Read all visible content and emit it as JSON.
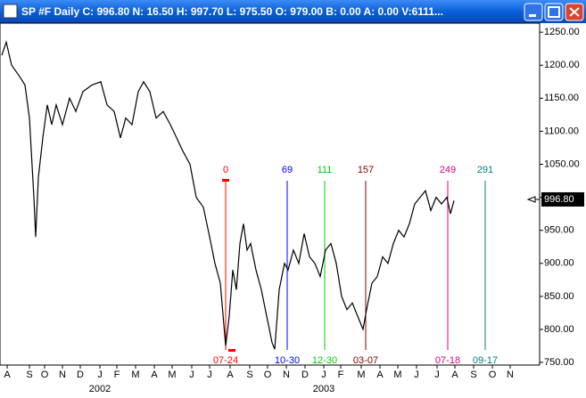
{
  "window": {
    "title": "SP #F Daily C: 996.80 N: 16.50 H: 997.70 L: 975.50 O: 979.00 B: 0.00 A: 0.00 V:6111..."
  },
  "chart_data": {
    "type": "line",
    "x": [
      -251,
      -246,
      -240,
      -232,
      -225,
      -220,
      -215,
      -213,
      -210,
      -205,
      -200,
      -195,
      -190,
      -183,
      -175,
      -168,
      -160,
      -150,
      -140,
      -133,
      -125,
      -118,
      -112,
      -105,
      -98,
      -92,
      -85,
      -78,
      -70,
      -62,
      -55,
      -48,
      -40,
      -33,
      -25,
      -18,
      -12,
      -6,
      0,
      4,
      8,
      12,
      16,
      20,
      24,
      28,
      34,
      40,
      46,
      52,
      55,
      60,
      66,
      70,
      76,
      82,
      88,
      94,
      100,
      106,
      112,
      118,
      124,
      130,
      136,
      142,
      148,
      154,
      158,
      164,
      170,
      176,
      182,
      188,
      194,
      200,
      206,
      212,
      218,
      224,
      230,
      236,
      242,
      248,
      252,
      256
    ],
    "series": [
      {
        "color": "#000000",
        "values": [
          1215,
          1235,
          1200,
          1185,
          1170,
          1120,
          1000,
          940,
          1030,
          1090,
          1140,
          1110,
          1140,
          1110,
          1150,
          1130,
          1160,
          1170,
          1175,
          1140,
          1130,
          1090,
          1120,
          1110,
          1160,
          1175,
          1160,
          1120,
          1130,
          1110,
          1090,
          1070,
          1050,
          1000,
          985,
          940,
          900,
          870,
          775,
          820,
          890,
          860,
          930,
          960,
          920,
          930,
          890,
          860,
          820,
          780,
          770,
          860,
          900,
          890,
          920,
          900,
          945,
          910,
          900,
          880,
          920,
          930,
          900,
          850,
          830,
          840,
          820,
          800,
          830,
          870,
          880,
          910,
          900,
          930,
          950,
          940,
          960,
          990,
          1000,
          1010,
          980,
          1000,
          990,
          1000,
          975,
          995
        ]
      }
    ],
    "xlim": [
      -253,
      352
    ],
    "ylim": [
      746,
      1261
    ],
    "yticks": [
      {
        "value": 750,
        "label": "750.00"
      },
      {
        "value": 800,
        "label": "800.00"
      },
      {
        "value": 850,
        "label": "850.00"
      },
      {
        "value": 900,
        "label": "900.00"
      },
      {
        "value": 950,
        "label": "950.00"
      },
      {
        "value": 1000,
        "label": "1000.00"
      },
      {
        "value": 1050,
        "label": "1050.00"
      },
      {
        "value": 1100,
        "label": "1100.00"
      },
      {
        "value": 1150,
        "label": "1150.00"
      },
      {
        "value": 1200,
        "label": "1200.00"
      },
      {
        "value": 1250,
        "label": "1250.00"
      }
    ],
    "xticks": [
      {
        "value": -245,
        "label": "A"
      },
      {
        "value": -220,
        "label": "S"
      },
      {
        "value": -203,
        "label": "O"
      },
      {
        "value": -183,
        "label": "N"
      },
      {
        "value": -163,
        "label": "D"
      },
      {
        "value": -141,
        "label": "J"
      },
      {
        "value": -122,
        "label": "F"
      },
      {
        "value": -101,
        "label": "M"
      },
      {
        "value": -80,
        "label": "A"
      },
      {
        "value": -60,
        "label": "M"
      },
      {
        "value": -38,
        "label": "J"
      },
      {
        "value": -18,
        "label": "J"
      },
      {
        "value": 5,
        "label": "A"
      },
      {
        "value": 27,
        "label": "S"
      },
      {
        "value": 47,
        "label": "O"
      },
      {
        "value": 68,
        "label": "N"
      },
      {
        "value": 89,
        "label": "D"
      },
      {
        "value": 110,
        "label": "J"
      },
      {
        "value": 129,
        "label": "F"
      },
      {
        "value": 152,
        "label": "M"
      },
      {
        "value": 173,
        "label": "A"
      },
      {
        "value": 193,
        "label": "M"
      },
      {
        "value": 214,
        "label": "J"
      },
      {
        "value": 237,
        "label": "J"
      },
      {
        "value": 257,
        "label": "A"
      },
      {
        "value": 278,
        "label": "S"
      },
      {
        "value": 299,
        "label": "O"
      },
      {
        "value": 319,
        "label": "N"
      }
    ],
    "year_ticks": [
      {
        "value": -141,
        "label": "2002"
      },
      {
        "value": 110,
        "label": "2003"
      }
    ],
    "cycles": [
      {
        "value": 0,
        "date": "07-24",
        "color": "#ff0000"
      },
      {
        "value": 69,
        "date": "10-30",
        "color": "#0000ff"
      },
      {
        "value": 111,
        "date": "12-30",
        "color": "#00cc00"
      },
      {
        "value": 157,
        "date": "03-07",
        "color": "#800000"
      },
      {
        "value": 249,
        "date": "07-18",
        "color": "#e0007f"
      },
      {
        "value": 291,
        "date": "09-17",
        "color": "#008080"
      }
    ],
    "last_value": {
      "value": 996.8,
      "label": "996.80"
    }
  }
}
